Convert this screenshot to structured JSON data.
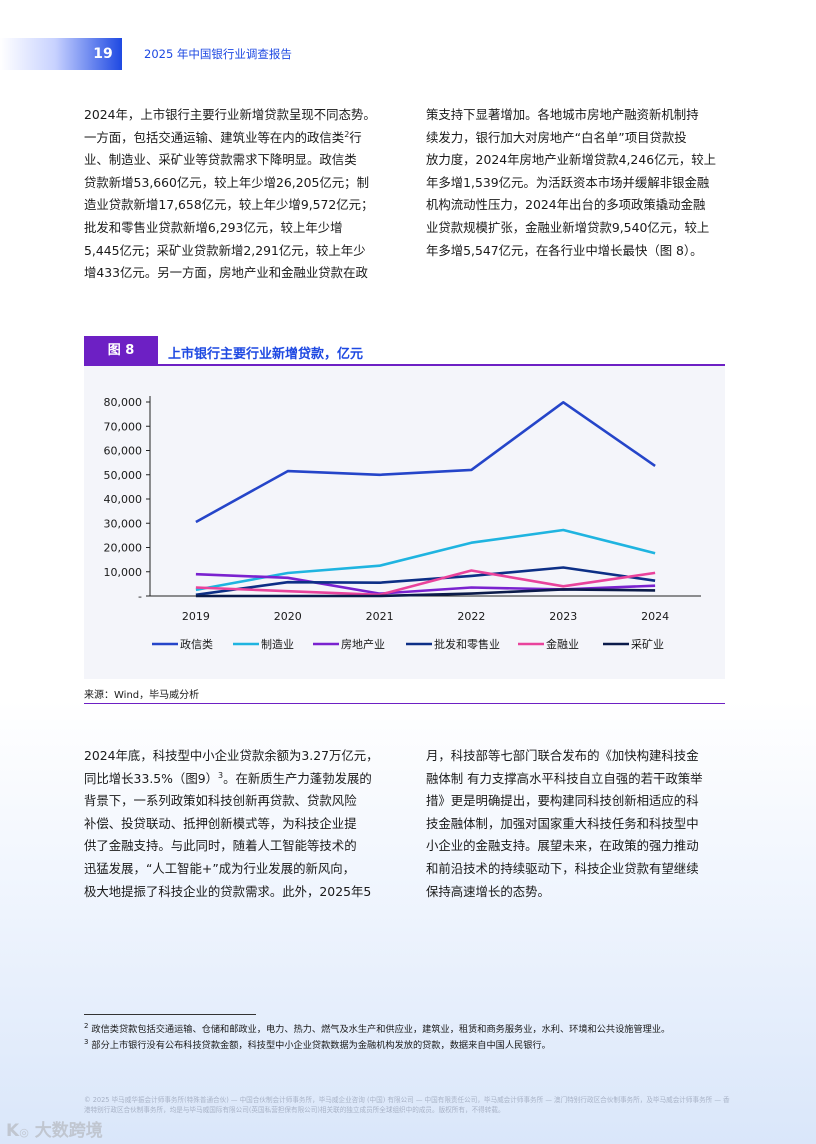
{
  "header": {
    "page_number": "19",
    "report_title": "2025 年中国银行业调查报告"
  },
  "paragraph_1": {
    "left_lines": [
      "2024年，上市银行主要行业新增贷款呈现不同态势。",
      "一方面，包括交通运输、建筑业等在内的政信类",
      "业、制造业、采矿业等贷款需求下降明显。政信类",
      "贷款新增53,660亿元，较上年少增26,205亿元；制",
      "造业贷款新增17,658亿元，较上年少增9,572亿元；",
      "批发和零售业贷款新增6,293亿元，较上年少增",
      "5,445亿元；采矿业贷款新增2,291亿元，较上年少",
      "增433亿元。另一方面，房地产业和金融业贷款在政"
    ],
    "footnote_mark": "2",
    "right_lines": [
      "策支持下显著增加。各地城市房地产融资新机制持",
      "续发力，银行加大对房地产“白名单”项目贷款投",
      "放力度，2024年房地产业新增贷款4,246亿元，较上",
      "年多增1,539亿元。为活跃资本市场并缓解非银金融",
      "机构流动性压力，2024年出台的多项政策撬动金融",
      "业贷款规模扩张，金融业新增贷款9,540亿元，较上",
      "年多增5,547亿元，在各行业中增长最快（图 8）。"
    ]
  },
  "figure": {
    "label": "图 8",
    "title": "上市银行主要行业新增贷款，亿元",
    "source": "来源：Wind，毕马威分析"
  },
  "chart_data": {
    "type": "line",
    "title": "上市银行主要行业新增贷款，亿元",
    "x": [
      "2019",
      "2020",
      "2021",
      "2022",
      "2023",
      "2024"
    ],
    "y_ticks": [
      "-",
      "10,000",
      "20,000",
      "30,000",
      "40,000",
      "50,000",
      "60,000",
      "70,000",
      "80,000"
    ],
    "ylim": [
      0,
      80000
    ],
    "legend_position": "bottom",
    "grid": false,
    "series": [
      {
        "name": "政信类",
        "color": "#2545c9",
        "values": [
          30500,
          51500,
          50000,
          52000,
          79865,
          53660
        ]
      },
      {
        "name": "制造业",
        "color": "#1fb4e0",
        "values": [
          2500,
          9500,
          12500,
          22000,
          27230,
          17658
        ]
      },
      {
        "name": "房地产业",
        "color": "#7a22cf",
        "values": [
          9000,
          7500,
          1000,
          3500,
          2707,
          4246
        ]
      },
      {
        "name": "批发和零售业",
        "color": "#0d2f86",
        "values": [
          500,
          5700,
          5500,
          8300,
          11738,
          6293
        ]
      },
      {
        "name": "金融业",
        "color": "#e9439c",
        "values": [
          3500,
          2000,
          500,
          10500,
          3993,
          9540
        ]
      },
      {
        "name": "采矿业",
        "color": "#0b1b4a",
        "values": [
          0,
          0,
          0,
          1000,
          2724,
          2291
        ]
      }
    ]
  },
  "paragraph_2": {
    "left_lines": [
      "2024年底，科技型中小企业贷款余额为3.27万亿元，",
      "同比增长33.5%（图9）。在新质生产力蓬勃发展的",
      "背景下，一系列政策如科技创新再贷款、贷款风险",
      "补偿、投贷联动、抵押创新模式等，为科技企业提",
      "供了金融支持。与此同时，随着人工智能等技术的",
      "迅猛发展，“人工智能+”成为行业发展的新风向，",
      "极大地提振了科技企业的贷款需求。此外，2025年5"
    ],
    "footnote_mark": "3",
    "right_lines": [
      "月，科技部等七部门联合发布的《加快构建科技金",
      "融体制 有力支撑高水平科技自立自强的若干政策举",
      "措》更是明确提出，要构建同科技创新相适应的科",
      "技金融体制，加强对国家重大科技任务和科技型中",
      "小企业的金融支持。展望未来，在政策的强力推动",
      "和前沿技术的持续驱动下，科技企业贷款有望继续",
      "保持高速增长的态势。"
    ]
  },
  "footnotes": [
    {
      "mark": "2",
      "text": "政信类贷款包括交通运输、仓储和邮政业，电力、热力、燃气及水生产和供应业，建筑业，租赁和商务服务业，水利、环境和公共设施管理业。"
    },
    {
      "mark": "3",
      "text": "部分上市银行没有公布科技贷款金额，科技型中小企业贷款数据为金融机构发放的贷款，数据来自中国人民银行。"
    }
  ],
  "copyright": "© 2025 毕马威华振会计师事务所(特殊普通合伙) — 中国合伙制会计师事务所，毕马威企业咨询 (中国) 有限公司 — 中国有限责任公司，毕马威会计师事务所 — 澳门特别行政区合伙制事务所，及毕马威会计师事务所 — 香港特别行政区合伙制事务所，均是与毕马威国际有限公司(英国私营担保有限公司)相关联的独立成员所全球组织中的成员。版权所有，不得转载。",
  "watermark": "大数跨境"
}
